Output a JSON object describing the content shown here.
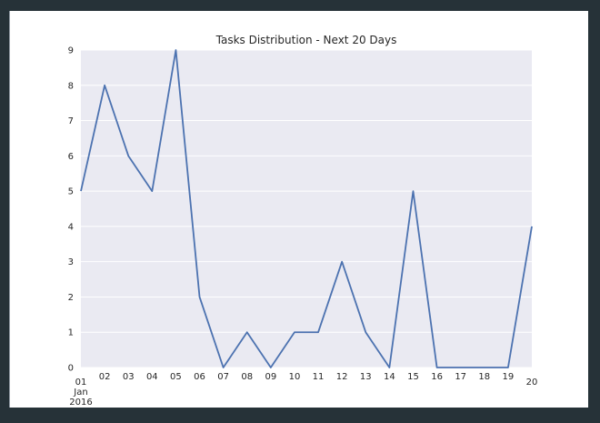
{
  "window": {
    "frame_color": "#263238",
    "figure_background": "#ffffff",
    "figure_edge_color": "#8f98a2"
  },
  "chart_data": {
    "type": "line",
    "title": "Tasks Distribution - Next 20 Days",
    "x_tick_labels": [
      "01",
      "02",
      "03",
      "04",
      "05",
      "06",
      "07",
      "08",
      "09",
      "10",
      "11",
      "12",
      "13",
      "14",
      "15",
      "16",
      "17",
      "18",
      "19",
      "20"
    ],
    "x_major_tick_sublabels": [
      "Jan",
      "2016"
    ],
    "values": [
      5,
      8,
      6,
      5,
      9,
      2,
      0,
      1,
      0,
      1,
      1,
      3,
      1,
      0,
      5,
      0,
      0,
      0,
      0,
      4
    ],
    "y_tick_labels": [
      "0",
      "1",
      "2",
      "3",
      "4",
      "5",
      "6",
      "7",
      "8",
      "9"
    ],
    "ylim": [
      0,
      9
    ],
    "xlabel": "",
    "ylabel": "",
    "grid": "horizontal-only",
    "legend": "none",
    "style": "seaborn-darkgrid",
    "colors": {
      "line": "#4c72b0",
      "plot_background": "#eaeaf2",
      "gridline": "#ffffff",
      "tick_text": "#262626",
      "title_text": "#262626"
    },
    "line_width": 1.8
  }
}
